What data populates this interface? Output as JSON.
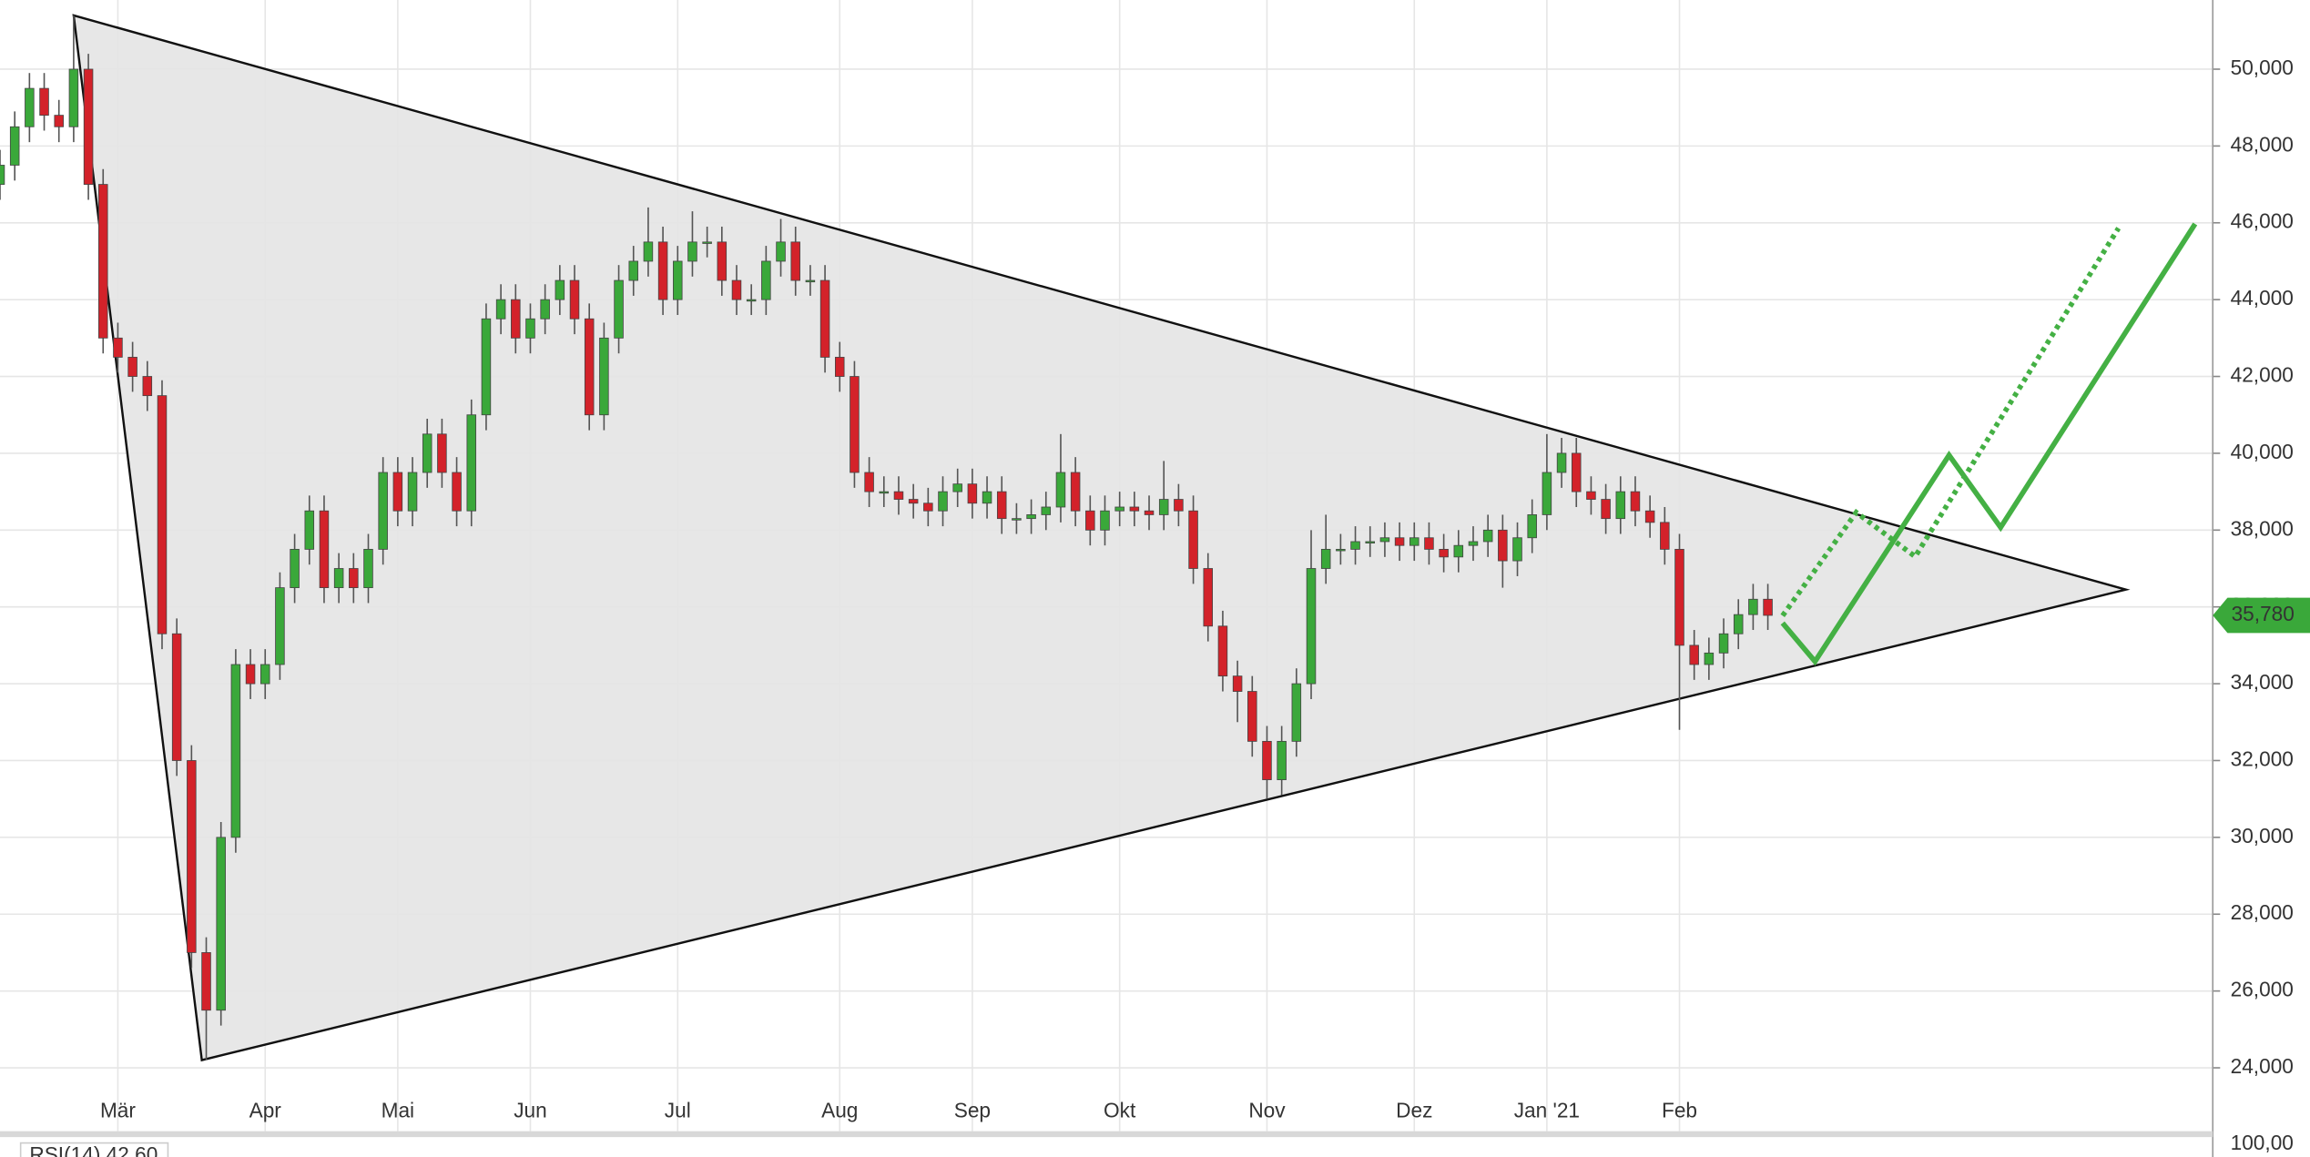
{
  "chart_data": {
    "type": "candlestick",
    "categories": [
      null,
      null,
      null,
      null,
      null,
      null,
      null,
      null,
      "Mär",
      null,
      null,
      null,
      null,
      null,
      null,
      null,
      null,
      null,
      "Apr",
      null,
      null,
      null,
      null,
      null,
      null,
      null,
      null,
      "Mai",
      null,
      null,
      null,
      null,
      null,
      null,
      null,
      null,
      "Jun",
      null,
      null,
      null,
      null,
      null,
      null,
      null,
      null,
      null,
      "Jul",
      null,
      null,
      null,
      null,
      null,
      null,
      null,
      null,
      null,
      null,
      "Aug",
      null,
      null,
      null,
      null,
      null,
      null,
      null,
      null,
      "Sep",
      null,
      null,
      null,
      null,
      null,
      null,
      null,
      null,
      null,
      "Okt",
      null,
      null,
      null,
      null,
      null,
      null,
      null,
      null,
      null,
      "Nov",
      null,
      null,
      null,
      null,
      null,
      null,
      null,
      null,
      null,
      "Dez",
      null,
      null,
      null,
      null,
      null,
      null,
      null,
      null,
      "Jan '21",
      null,
      null,
      null,
      null,
      null,
      null,
      null,
      null,
      "Feb",
      null,
      null,
      null,
      null,
      null,
      null
    ],
    "open": [
      47000,
      47500,
      48500,
      49500,
      48800,
      48500,
      50000,
      47000,
      43000,
      42500,
      42000,
      41500,
      35300,
      32000,
      27000,
      25500,
      30000,
      34500,
      34000,
      34500,
      36500,
      37500,
      38500,
      36500,
      37000,
      36500,
      37500,
      39500,
      38500,
      39500,
      40500,
      39500,
      38500,
      41000,
      43500,
      44000,
      43000,
      43500,
      44000,
      44500,
      43500,
      41000,
      43000,
      44500,
      45000,
      45500,
      44000,
      45000,
      45500,
      45500,
      44500,
      44000,
      44000,
      45000,
      45500,
      44500,
      44500,
      42500,
      42000,
      39500,
      39000,
      39000,
      38800,
      38700,
      38500,
      39000,
      39200,
      38700,
      39000,
      38300,
      38300,
      38400,
      38600,
      39500,
      38500,
      38000,
      38500,
      38600,
      38500,
      38400,
      38800,
      38500,
      37000,
      35500,
      34200,
      33800,
      32500,
      31500,
      32500,
      34000,
      37000,
      37500,
      37500,
      37700,
      37700,
      37800,
      37600,
      37800,
      37500,
      37300,
      37600,
      37700,
      38000,
      37200,
      37800,
      38400,
      39500,
      40000,
      39000,
      38800,
      38300,
      39000,
      38500,
      38200,
      37500,
      35000,
      34500,
      34800,
      35300,
      35800,
      36200
    ],
    "high": [
      47900,
      48900,
      49900,
      49900,
      49200,
      51400,
      50400,
      47400,
      43400,
      42900,
      42400,
      41900,
      35700,
      32400,
      27400,
      30400,
      34900,
      34900,
      34900,
      36900,
      37900,
      38900,
      38900,
      37400,
      37400,
      37900,
      39900,
      39900,
      39900,
      40900,
      40900,
      39900,
      41400,
      43900,
      44400,
      44400,
      43900,
      44400,
      44900,
      44900,
      43900,
      43400,
      44900,
      45400,
      46400,
      45900,
      45400,
      46300,
      45900,
      45900,
      44900,
      44400,
      45400,
      46100,
      45900,
      44900,
      44900,
      42900,
      42400,
      39900,
      39400,
      39400,
      39200,
      39100,
      39400,
      39600,
      39600,
      39400,
      39400,
      38700,
      38800,
      39000,
      40500,
      39900,
      38900,
      38900,
      39000,
      39000,
      38900,
      39800,
      39200,
      38900,
      37400,
      35900,
      34600,
      34200,
      32900,
      32900,
      34400,
      38000,
      38400,
      37900,
      38100,
      38100,
      38200,
      38200,
      38200,
      38200,
      37900,
      38000,
      38100,
      38400,
      38400,
      38200,
      38800,
      40500,
      40400,
      40400,
      39400,
      39200,
      39400,
      39400,
      38900,
      38600,
      37900,
      35400,
      35200,
      35700,
      36200,
      36600,
      36600
    ],
    "low": [
      46600,
      47100,
      48100,
      48400,
      48100,
      48100,
      46600,
      42600,
      42100,
      41600,
      41100,
      34900,
      31600,
      26600,
      24200,
      25100,
      29600,
      33600,
      33600,
      34100,
      36100,
      37100,
      36100,
      36100,
      36100,
      36100,
      37100,
      38100,
      38100,
      39100,
      39100,
      38100,
      38100,
      40600,
      43100,
      42600,
      42600,
      43100,
      43600,
      43100,
      40600,
      40600,
      42600,
      44100,
      44600,
      43600,
      43600,
      44600,
      45100,
      44100,
      43600,
      43600,
      43600,
      44600,
      44100,
      44100,
      42100,
      41600,
      39100,
      38600,
      38600,
      38400,
      38300,
      38100,
      38100,
      38600,
      38300,
      38300,
      37900,
      37900,
      37900,
      38000,
      38200,
      38100,
      37600,
      37600,
      38100,
      38100,
      38000,
      38000,
      38100,
      36600,
      35100,
      33800,
      33000,
      32100,
      31000,
      31100,
      32100,
      33600,
      36600,
      37100,
      37100,
      37300,
      37300,
      37200,
      37200,
      37100,
      36900,
      36900,
      37200,
      37300,
      36500,
      36800,
      37400,
      38000,
      39100,
      38600,
      38400,
      37900,
      37900,
      38100,
      37800,
      37100,
      32800,
      34100,
      34100,
      34400,
      34900,
      35400,
      35400
    ],
    "close": [
      47500,
      48500,
      49500,
      48800,
      48500,
      50000,
      47000,
      43000,
      42500,
      42000,
      41500,
      35300,
      32000,
      27000,
      25500,
      30000,
      34500,
      34000,
      34500,
      36500,
      37500,
      38500,
      36500,
      37000,
      36500,
      37500,
      39500,
      38500,
      39500,
      40500,
      39500,
      38500,
      41000,
      43500,
      44000,
      43000,
      43500,
      44000,
      44500,
      43500,
      41000,
      43000,
      44500,
      45000,
      45500,
      44000,
      45000,
      45500,
      45500,
      44500,
      44000,
      44000,
      45000,
      45500,
      44500,
      44500,
      42500,
      42000,
      39500,
      39000,
      39000,
      38800,
      38700,
      38500,
      39000,
      39200,
      38700,
      39000,
      38300,
      38300,
      38400,
      38600,
      39500,
      38500,
      38000,
      38500,
      38600,
      38500,
      38400,
      38800,
      38500,
      37000,
      35500,
      34200,
      33800,
      32500,
      31500,
      32500,
      34000,
      37000,
      37500,
      37500,
      37700,
      37700,
      37800,
      37600,
      37800,
      37500,
      37300,
      37600,
      37700,
      38000,
      37200,
      37800,
      38400,
      39500,
      40000,
      39000,
      38800,
      38300,
      39000,
      38500,
      38200,
      37500,
      35000,
      34500,
      34800,
      35300,
      35800,
      36200,
      35780
    ],
    "up_color": "#3aa83a",
    "down_color": "#d3222a",
    "ylim": [
      22350,
      51800
    ],
    "yticks": [
      {
        "value": 24000,
        "label": "24,000"
      },
      {
        "value": 26000,
        "label": "26,000"
      },
      {
        "value": 28000,
        "label": "28,000"
      },
      {
        "value": 30000,
        "label": "30,000"
      },
      {
        "value": 32000,
        "label": "32,000"
      },
      {
        "value": 34000,
        "label": "34,000"
      },
      {
        "value": 36000,
        "label": "36,000"
      },
      {
        "value": 38000,
        "label": "38,000"
      },
      {
        "value": 40000,
        "label": "40,000"
      },
      {
        "value": 42000,
        "label": "42,000"
      },
      {
        "value": 44000,
        "label": "44,000"
      },
      {
        "value": 46000,
        "label": "46,000"
      },
      {
        "value": 48000,
        "label": "48,000"
      },
      {
        "value": 50000,
        "label": "50,000"
      }
    ],
    "grid": true,
    "last_price": {
      "value": 35780,
      "label": "35,780"
    },
    "triangle": {
      "points": [
        [
          5,
          51400
        ],
        [
          13.7,
          24200
        ],
        [
          144.3,
          36450
        ]
      ],
      "fill": "#e4e4e4",
      "color": "#111111"
    },
    "projections": [
      {
        "style": "solid",
        "color": "#44b044",
        "points": [
          [
            121,
            35580
          ],
          [
            123.2,
            34580
          ],
          [
            132.3,
            39950
          ],
          [
            135.8,
            38070
          ],
          [
            149,
            45970
          ]
        ]
      },
      {
        "style": "dotted",
        "color": "#44b044",
        "points": [
          [
            121,
            35770
          ],
          [
            126,
            38460
          ],
          [
            130,
            37310
          ],
          [
            143.8,
            45860
          ]
        ]
      }
    ],
    "rsi_label": "RSI(14) 42,60",
    "rsi_top_label": "100,00"
  }
}
